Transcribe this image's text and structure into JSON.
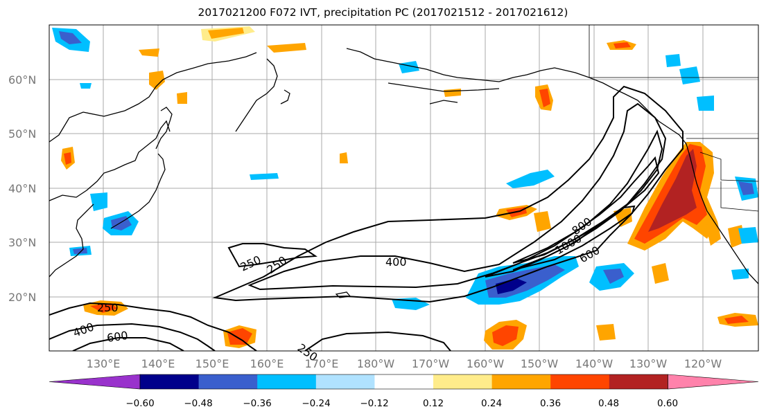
{
  "title": "2017021200 F072 IVT, precipitation PC (2017021512 - 2017021612)",
  "map": {
    "lat_ticks": [
      "60°N",
      "50°N",
      "40°N",
      "30°N",
      "20°N"
    ],
    "lon_ticks": [
      "130°E",
      "140°E",
      "150°E",
      "160°E",
      "170°E",
      "180°W",
      "170°W",
      "160°W",
      "150°W",
      "140°W",
      "130°W",
      "120°W"
    ],
    "ivt_contour_labels": [
      "250",
      "250",
      "400",
      "1000",
      "800",
      "600",
      "250",
      "400",
      "600",
      "250"
    ]
  },
  "colorbar": {
    "tick_labels": [
      "−0.60",
      "−0.48",
      "−0.36",
      "−0.24",
      "−0.12",
      "0.12",
      "0.24",
      "0.36",
      "0.48",
      "0.60"
    ],
    "colors": [
      "#9932cc",
      "#00008b",
      "#3a5fcd",
      "#00bfff",
      "#b0e2ff",
      "#ffffff",
      "#ffec8b",
      "#ffa500",
      "#ff4500",
      "#b22222",
      "#ff82ab"
    ]
  }
}
